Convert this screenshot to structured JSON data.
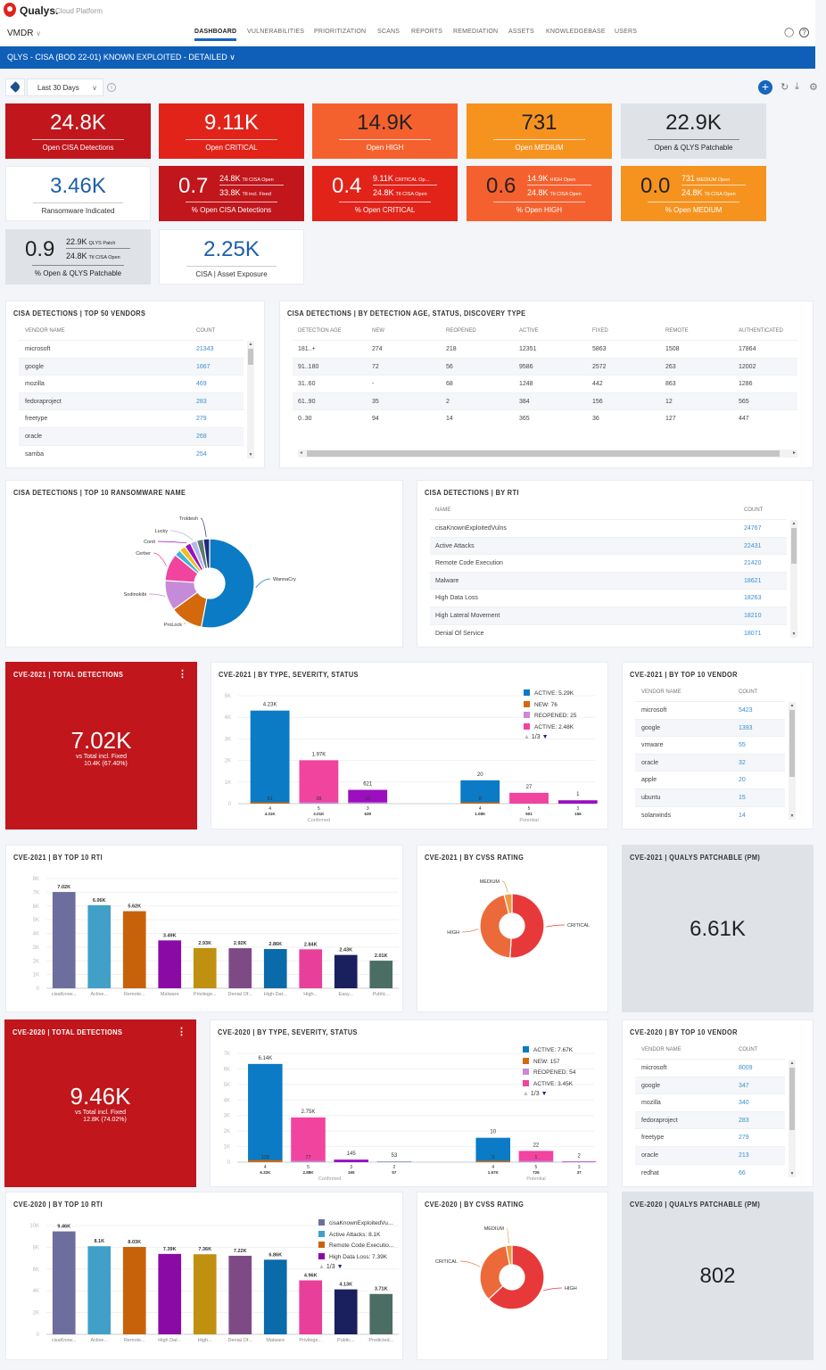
{
  "header": {
    "brand": "Qualys.",
    "brand_sub": "Cloud Platform",
    "module": "VMDR",
    "nav": [
      "DASHBOARD",
      "VULNERABILITIES",
      "PRIORITIZATION",
      "SCANS",
      "REPORTS",
      "REMEDIATION",
      "ASSETS",
      "KNOWLEDGEBASE",
      "USERS"
    ],
    "active_nav": "DASHBOARD",
    "icons": [
      "user-icon",
      "help-icon"
    ]
  },
  "dashboard": {
    "title": "QLYS - CISA (BOD 22-01) KNOWN EXPLOITED - DETAILED",
    "date_filter": "Last 30 Days",
    "toolbar_icons": [
      "add-widget-icon",
      "refresh-icon",
      "download-icon",
      "settings-icon"
    ]
  },
  "colors": {
    "accent": "#0f5fb9",
    "critical_dark": "#c0161c",
    "critical": "#e2231a",
    "high": "#f5612e",
    "medium": "#f6931f",
    "neutral": "#dfe3e8",
    "link": "#3a8fd0"
  },
  "kpis": [
    {
      "type": "simple",
      "value": "24.8K",
      "label": "Open CISA Detections",
      "bg": "#c0161c",
      "fg": "#ffffff"
    },
    {
      "type": "simple",
      "value": "9.11K",
      "label": "Open CRITICAL",
      "bg": "#e2231a",
      "fg": "#ffffff"
    },
    {
      "type": "simple",
      "value": "14.9K",
      "label": "Open HIGH",
      "bg": "#f5612e",
      "fg": "#222222"
    },
    {
      "type": "simple",
      "value": "731",
      "label": "Open MEDIUM",
      "bg": "#f6931f",
      "fg": "#222222"
    },
    {
      "type": "simple",
      "value": "22.9K",
      "label": "Open & QLYS Patchable",
      "bg": "#dfe3e8",
      "fg": "#222222"
    },
    {
      "type": "simple",
      "value": "3.46K",
      "label": "Ransomware Indicated",
      "bg": "#ffffff",
      "fg": "#1d5fa8"
    },
    {
      "type": "ratio",
      "value": "0.7",
      "top_num": "24.8K",
      "top_desc": "Ttl CISA Open",
      "bottom_num": "33.8K",
      "bottom_desc": "Ttl incl. Fixed",
      "label": "% Open CISA Detections",
      "bg": "#c0161c",
      "fg": "#ffffff"
    },
    {
      "type": "ratio",
      "value": "0.4",
      "top_num": "9.11K",
      "top_desc": "CRITICAL Op...",
      "bottom_num": "24.8K",
      "bottom_desc": "Ttl CISA Open",
      "label": "% Open CRITICAL",
      "bg": "#e2231a",
      "fg": "#ffffff"
    },
    {
      "type": "ratio",
      "value": "0.6",
      "top_num": "14.9K",
      "top_desc": "HIGH Open",
      "bottom_num": "24.8K",
      "bottom_desc": "Ttl CISA Open",
      "label": "% Open HIGH",
      "bg": "#f5612e",
      "fg": "#222222"
    },
    {
      "type": "ratio",
      "value": "0.0",
      "top_num": "731",
      "top_desc": "MEDIUM Open",
      "bottom_num": "24.8K",
      "bottom_desc": "Ttl CISA Open",
      "label": "% Open MEDIUM",
      "bg": "#f6931f",
      "fg": "#222222"
    },
    {
      "type": "ratio",
      "value": "0.9",
      "top_num": "22.9K",
      "top_desc": "QLYS Patch",
      "bottom_num": "24.8K",
      "bottom_desc": "Ttl CISA Open",
      "label": "% Open & QLYS Patchable",
      "bg": "#dfe3e8",
      "fg": "#222222"
    },
    {
      "type": "simple",
      "value": "2.25K",
      "label": "CISA | Asset Exposure",
      "bg": "#ffffff",
      "fg": "#1d5fa8"
    }
  ],
  "tables": {
    "vendors": {
      "title": "CISA DETECTIONS | TOP 50 VENDORS",
      "columns": [
        "VENDOR NAME",
        "COUNT"
      ],
      "rows": [
        [
          "microsoft",
          "21343"
        ],
        [
          "google",
          "1667"
        ],
        [
          "mozilla",
          "469"
        ],
        [
          "fedoraproject",
          "283"
        ],
        [
          "freetype",
          "279"
        ],
        [
          "oracle",
          "268"
        ],
        [
          "samba",
          "254"
        ]
      ]
    },
    "age": {
      "title": "CISA DETECTIONS | BY DETECTION AGE, STATUS, DISCOVERY TYPE",
      "columns": [
        "DETECTION AGE",
        "NEW",
        "REOPENED",
        "ACTIVE",
        "FIXED",
        "REMOTE",
        "AUTHENTICATED"
      ],
      "rows": [
        [
          "181..+",
          "274",
          "218",
          "12351",
          "5863",
          "1508",
          "17864"
        ],
        [
          "91..180",
          "72",
          "56",
          "9586",
          "2572",
          "263",
          "12002"
        ],
        [
          "31..60",
          "-",
          "68",
          "1248",
          "442",
          "863",
          "1286"
        ],
        [
          "61..90",
          "35",
          "2",
          "384",
          "156",
          "12",
          "565"
        ],
        [
          "0..30",
          "94",
          "14",
          "365",
          "36",
          "127",
          "447"
        ]
      ]
    },
    "rti": {
      "title": "CISA DETECTIONS | BY RTI",
      "columns": [
        "NAME",
        "COUNT"
      ],
      "rows": [
        [
          "cisaKnownExploitedVulns",
          "24767"
        ],
        [
          "Active Attacks",
          "22431"
        ],
        [
          "Remote Code Execution",
          "21420"
        ],
        [
          "Malware",
          "18621"
        ],
        [
          "High Data Loss",
          "18263"
        ],
        [
          "High Lateral Movement",
          "18210"
        ],
        [
          "Denial Of Service",
          "18071"
        ]
      ]
    },
    "vendor2021": {
      "title": "CVE-2021 | BY TOP 10 VENDOR",
      "columns": [
        "VENDOR NAME",
        "COUNT"
      ],
      "rows": [
        [
          "microsoft",
          "5423"
        ],
        [
          "google",
          "1393"
        ],
        [
          "vmware",
          "55"
        ],
        [
          "oracle",
          "32"
        ],
        [
          "apple",
          "20"
        ],
        [
          "ubuntu",
          "15"
        ],
        [
          "solarwinds",
          "14"
        ]
      ]
    },
    "vendor2020": {
      "title": "CVE-2020 | BY TOP 10 VENDOR",
      "columns": [
        "VENDOR NAME",
        "COUNT"
      ],
      "rows": [
        [
          "microsoft",
          "8009"
        ],
        [
          "google",
          "347"
        ],
        [
          "mozilla",
          "340"
        ],
        [
          "fedoraproject",
          "283"
        ],
        [
          "freetype",
          "279"
        ],
        [
          "oracle",
          "213"
        ],
        [
          "redhat",
          "66"
        ]
      ]
    }
  },
  "totals": {
    "y2021": {
      "title": "CVE-2021 | TOTAL DETECTIONS",
      "value": "7.02K",
      "sub1": "vs Total incl. Fixed",
      "sub2": "10.4K (67.40%)"
    },
    "y2020": {
      "title": "CVE-2020 | TOTAL DETECTIONS",
      "value": "9.46K",
      "sub1": "vs Total incl. Fixed",
      "sub2": "12.8K (74.02%)"
    }
  },
  "patchable": {
    "y2021": {
      "title": "CVE-2021 | QUALYS PATCHABLE (PM)",
      "value": "6.61K"
    },
    "y2020": {
      "title": "CVE-2020 | QUALYS PATCHABLE (PM)",
      "value": "802"
    }
  },
  "chart_data": [
    {
      "id": "ransomware",
      "type": "pie",
      "donut": true,
      "title": "CISA DETECTIONS | TOP 10 RANSOMWARE NAME",
      "slices": [
        {
          "name": "WannaCry",
          "value": 53,
          "color": "#0a7bc4"
        },
        {
          "name": "ProLock",
          "value": 12,
          "color": "#d4680c"
        },
        {
          "name": "Sodinokibi",
          "value": 11,
          "color": "#c58ad8"
        },
        {
          "name": "Cerber",
          "value": 10,
          "color": "#f0449e"
        },
        {
          "name": "",
          "value": 2.3,
          "color": "#3fb5d8"
        },
        {
          "name": "",
          "value": 2.3,
          "color": "#f2be1c"
        },
        {
          "name": "Conti",
          "value": 2.3,
          "color": "#9b0fbf"
        },
        {
          "name": "Lucky",
          "value": 2.4,
          "color": "#b4b6e6"
        },
        {
          "name": "",
          "value": 2.4,
          "color": "#5c7a72"
        },
        {
          "name": "Troldesh",
          "value": 2.3,
          "color": "#1f2a7a"
        }
      ]
    },
    {
      "id": "type2021",
      "type": "bar",
      "stacked": true,
      "title": "CVE-2021 | BY TYPE, SEVERITY, STATUS",
      "ylim": [
        0,
        5000
      ],
      "yticks": [
        0,
        1000,
        2000,
        3000,
        4000,
        5000
      ],
      "ytick_labels": [
        "0",
        "1K",
        "2K",
        "3K",
        "4K",
        "5K"
      ],
      "groups": [
        "Confirmed",
        "Potential"
      ],
      "bars": [
        {
          "group": "Confirmed",
          "severity": "4",
          "total_label": "4.31K",
          "total": 4310,
          "base": 51,
          "base_color": "#d4680c",
          "color": "#0a7bc4",
          "top_label": "4.23K",
          "inner_label": "51"
        },
        {
          "group": "Confirmed",
          "severity": "5",
          "total_label": "2.01K",
          "total": 2010,
          "base": 28,
          "base_color": "#c58ad8",
          "color": "#f0449e",
          "top_label": "1.97K",
          "inner_label": "28"
        },
        {
          "group": "Confirmed",
          "severity": "3",
          "total_label": "639",
          "total": 639,
          "base": 33,
          "base_color": "#c58ad8",
          "color": "#9b0fbf",
          "top_label": "621",
          "inner_label": "33"
        },
        {
          "group": "Potential",
          "severity": "4",
          "total_label": "1.08K",
          "total": 1080,
          "base": 8,
          "base_color": "#d4680c",
          "color": "#0a7bc4",
          "top_label": "20",
          "inner_label": "8"
        },
        {
          "group": "Potential",
          "severity": "5",
          "total_label": "501",
          "total": 501,
          "base": 0,
          "base_color": "#c58ad8",
          "color": "#f0449e",
          "top_label": "27",
          "inner_label": ""
        },
        {
          "group": "Potential",
          "severity": "3",
          "total_label": "156",
          "total": 156,
          "base": 0,
          "base_color": "#c58ad8",
          "color": "#9b0fbf",
          "top_label": "1",
          "inner_label": ""
        }
      ],
      "legend": [
        {
          "label": "ACTIVE: 5.29K",
          "color": "#0a7bc4"
        },
        {
          "label": "NEW: 76",
          "color": "#d4680c"
        },
        {
          "label": "REOPENED: 25",
          "color": "#c58ad8"
        },
        {
          "label": "ACTIVE: 2.48K",
          "color": "#f0449e"
        }
      ],
      "legend_page": "1/3",
      "legend_placement": "top-right",
      "grid": true
    },
    {
      "id": "rti2021",
      "type": "bar",
      "title": "CVE-2021 | BY TOP 10 RTI",
      "ylim": [
        0,
        8000
      ],
      "yticks": [
        0,
        1000,
        2000,
        3000,
        4000,
        5000,
        6000,
        7000,
        8000
      ],
      "ytick_labels": [
        "0",
        "1K",
        "2K",
        "3K",
        "4K",
        "5K",
        "6K",
        "7K",
        "8K"
      ],
      "categories": [
        "cisaKnow...",
        "Active...",
        "Remote...",
        "Malware",
        "Privilege...",
        "Denial Of...",
        "High Dat...",
        "High...",
        "Easy...",
        "Public..."
      ],
      "values": [
        7020,
        6060,
        5620,
        3490,
        2930,
        2920,
        2860,
        2840,
        2430,
        2010
      ],
      "labels": [
        "7.02K",
        "6.06K",
        "5.62K",
        "3.49K",
        "2.93K",
        "2.92K",
        "2.86K",
        "2.84K",
        "2.43K",
        "2.01K"
      ],
      "colors": [
        "#6e6e9e",
        "#42a0c8",
        "#c8620a",
        "#8a0aa6",
        "#c09010",
        "#7e4a86",
        "#0a6aaa",
        "#e8409a",
        "#1a1f5e",
        "#4a6e64"
      ],
      "grid": true
    },
    {
      "id": "cvss2021",
      "type": "pie",
      "donut": true,
      "title": "CVE-2021 | BY CVSS RATING",
      "slices": [
        {
          "name": "CRITICAL",
          "value": 51,
          "color": "#e8393a"
        },
        {
          "name": "HIGH",
          "value": 45,
          "color": "#ec6a3a"
        },
        {
          "name": "MEDIUM",
          "value": 4,
          "color": "#f0983e"
        }
      ]
    },
    {
      "id": "type2020",
      "type": "bar",
      "stacked": true,
      "title": "CVE-2020 | BY TYPE, SEVERITY, STATUS",
      "ylim": [
        0,
        7000
      ],
      "yticks": [
        0,
        1000,
        2000,
        3000,
        4000,
        5000,
        6000,
        7000
      ],
      "ytick_labels": [
        "0",
        "1K",
        "2K",
        "3K",
        "4K",
        "5K",
        "6K",
        "7K"
      ],
      "groups": [
        "Confirmed",
        "Potential"
      ],
      "bars": [
        {
          "group": "Confirmed",
          "severity": "4",
          "total_label": "6.32K",
          "total": 6320,
          "base": 128,
          "base_color": "#d4680c",
          "color": "#0a7bc4",
          "top_label": "6.14K",
          "inner_label": "128"
        },
        {
          "group": "Confirmed",
          "severity": "5",
          "total_label": "2.88K",
          "total": 2880,
          "base": 77,
          "base_color": "#c58ad8",
          "color": "#f0449e",
          "top_label": "2.75K",
          "inner_label": "77"
        },
        {
          "group": "Confirmed",
          "severity": "3",
          "total_label": "165",
          "total": 165,
          "base": 0,
          "base_color": "#c58ad8",
          "color": "#9b0fbf",
          "top_label": "145",
          "inner_label": ""
        },
        {
          "group": "Confirmed",
          "severity": "2",
          "total_label": "57",
          "total": 57,
          "base": 0,
          "base_color": "#c58ad8",
          "color": "#9aa4c4",
          "top_label": "53",
          "inner_label": ""
        },
        {
          "group": "Potential",
          "severity": "4",
          "total_label": "1.57K",
          "total": 1570,
          "base": 3,
          "base_color": "#d4680c",
          "color": "#0a7bc4",
          "top_label": "10",
          "inner_label": "3"
        },
        {
          "group": "Potential",
          "severity": "5",
          "total_label": "726",
          "total": 726,
          "base": 1,
          "base_color": "#c58ad8",
          "color": "#f0449e",
          "top_label": "22",
          "inner_label": "1"
        },
        {
          "group": "Potential",
          "severity": "3",
          "total_label": "37",
          "total": 37,
          "base": 0,
          "base_color": "#c58ad8",
          "color": "#9b0fbf",
          "top_label": "2",
          "inner_label": ""
        }
      ],
      "legend": [
        {
          "label": "ACTIVE: 7.67K",
          "color": "#0a7bc4"
        },
        {
          "label": "NEW: 157",
          "color": "#d4680c"
        },
        {
          "label": "REOPENED: 54",
          "color": "#c58ad8"
        },
        {
          "label": "ACTIVE: 3.45K",
          "color": "#f0449e"
        }
      ],
      "legend_page": "1/3",
      "legend_placement": "top-right",
      "grid": true
    },
    {
      "id": "rti2020",
      "type": "bar",
      "title": "CVE-2020 | BY TOP 10 RTI",
      "ylim": [
        0,
        10000
      ],
      "yticks": [
        0,
        2000,
        4000,
        6000,
        8000,
        10000
      ],
      "ytick_labels": [
        "0",
        "2K",
        "4K",
        "6K",
        "8K",
        "10K"
      ],
      "categories": [
        "cisaKnow...",
        "Active...",
        "Remote...",
        "High Dat...",
        "High...",
        "Denial Of...",
        "Malware",
        "Privilege...",
        "Public...",
        "Predicted..."
      ],
      "values": [
        9460,
        8100,
        8030,
        7390,
        7360,
        7220,
        6860,
        4960,
        4130,
        3710
      ],
      "labels": [
        "9.46K",
        "8.1K",
        "8.03K",
        "7.39K",
        "7.36K",
        "7.22K",
        "6.86K",
        "4.96K",
        "4.13K",
        "3.71K"
      ],
      "colors": [
        "#6e6e9e",
        "#42a0c8",
        "#c8620a",
        "#8a0aa6",
        "#c09010",
        "#7e4a86",
        "#0a6aaa",
        "#e8409a",
        "#1a1f5e",
        "#4a6e64"
      ],
      "legend": [
        {
          "label": "cisaKnownExploitedVu...",
          "color": "#6e6e9e"
        },
        {
          "label": "Active Attacks: 8.1K",
          "color": "#42a0c8"
        },
        {
          "label": "Remote Code Executio...",
          "color": "#c8620a"
        },
        {
          "label": "High Data Loss: 7.39K",
          "color": "#8a0aa6"
        }
      ],
      "legend_page": "1/3",
      "legend_placement": "top-right",
      "grid": true
    },
    {
      "id": "cvss2020",
      "type": "pie",
      "donut": true,
      "title": "CVE-2020 | BY CVSS RATING",
      "slices": [
        {
          "name": "HIGH",
          "value": 63,
          "color": "#e8393a"
        },
        {
          "name": "CRITICAL",
          "value": 34,
          "color": "#ec6a3a"
        },
        {
          "name": "MEDIUM",
          "value": 3,
          "color": "#f0983e"
        }
      ]
    }
  ]
}
